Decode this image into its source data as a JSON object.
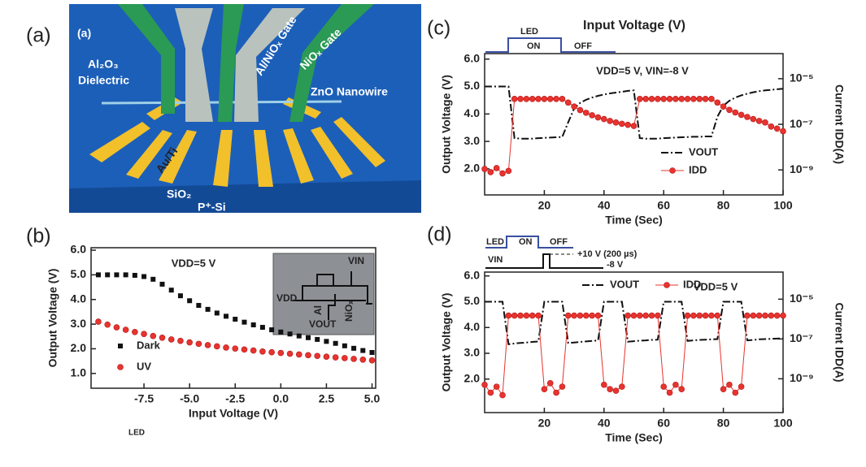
{
  "figure": {
    "panel_labels": [
      "(a)",
      "(b)",
      "(c)",
      "(d)"
    ],
    "illustration": {
      "inner_label": "(a)",
      "labels": [
        "Al₂O₃",
        "Dielectric",
        "Al/NiOₓ Gate",
        "NiOₓ Gate",
        "ZnO Nanowire",
        "Au/Ti",
        "SiO₂",
        "P⁺-Si"
      ]
    },
    "stray_text": "LED"
  },
  "chart_data": [
    {
      "type": "line",
      "xlabel": "Input Voltage (V)",
      "ylabel": "Output Voltage (V)",
      "annotation": "VDD=5 V",
      "inset_labels": [
        "VDD",
        "VIN",
        "VOUT",
        "Al",
        "NiOₓ"
      ],
      "x": [
        -10,
        -9.5,
        -9,
        -8.5,
        -8,
        -7.5,
        -7,
        -6.5,
        -6,
        -5.5,
        -5,
        -4.5,
        -4,
        -3.5,
        -3,
        -2.5,
        -2,
        -1.5,
        -1,
        -0.5,
        0,
        0.5,
        1,
        1.5,
        2,
        2.5,
        3,
        3.5,
        4,
        4.5,
        5
      ],
      "series": [
        {
          "name": "Dark",
          "color": "#111111",
          "marker": "square",
          "linestyle": "none",
          "values": [
            5.0,
            5.0,
            5.0,
            5.0,
            4.98,
            4.93,
            4.82,
            4.62,
            4.38,
            4.15,
            3.95,
            3.76,
            3.6,
            3.45,
            3.32,
            3.2,
            3.08,
            2.97,
            2.87,
            2.77,
            2.68,
            2.6,
            2.52,
            2.45,
            2.38,
            2.3,
            2.22,
            2.12,
            2.02,
            1.93,
            1.85
          ]
        },
        {
          "name": "UV",
          "color": "#e8332e",
          "marker": "circle",
          "linestyle": "none",
          "values": [
            3.1,
            2.98,
            2.87,
            2.77,
            2.68,
            2.6,
            2.52,
            2.45,
            2.38,
            2.32,
            2.26,
            2.2,
            2.15,
            2.1,
            2.05,
            2.01,
            1.97,
            1.93,
            1.89,
            1.86,
            1.83,
            1.8,
            1.77,
            1.74,
            1.71,
            1.68,
            1.65,
            1.62,
            1.59,
            1.56,
            1.53
          ]
        }
      ],
      "xlim": [
        -10.4,
        5.2
      ],
      "xticks": [
        -7.5,
        {
          "value": -5,
          "label": "-5.0"
        },
        -2.5,
        {
          "value": 0,
          "label": "0.0"
        },
        2.5,
        {
          "value": 5,
          "label": "5.0"
        }
      ],
      "ylim": [
        0.4,
        6.1
      ],
      "yticks": [
        {
          "value": 1,
          "label": "1.0"
        },
        {
          "value": 2,
          "label": "2.0"
        },
        {
          "value": 3,
          "label": "3.0"
        },
        {
          "value": 4,
          "label": "4.0"
        },
        {
          "value": 5,
          "label": "5.0"
        },
        {
          "value": 6,
          "label": "6.0"
        }
      ],
      "legend": "lower left"
    },
    {
      "type": "line",
      "title": "Input Voltage (V)",
      "xlabel": "Time (Sec)",
      "ylabel": "Output Voltage (V)",
      "y2label": "Current IDD(A)",
      "annotation": "VDD=5 V, VIN=-8 V",
      "waveform_labels": [
        "LED",
        "ON",
        "OFF"
      ],
      "x": [
        0,
        2,
        4,
        6,
        8,
        10,
        12,
        14,
        16,
        18,
        20,
        22,
        24,
        26,
        28,
        30,
        32,
        34,
        36,
        38,
        40,
        42,
        44,
        46,
        48,
        50,
        52,
        54,
        56,
        58,
        60,
        62,
        64,
        66,
        68,
        70,
        72,
        74,
        76,
        78,
        80,
        82,
        84,
        86,
        88,
        90,
        92,
        94,
        96,
        98,
        100
      ],
      "series": [
        {
          "name": "VOUT",
          "color": "#111111",
          "marker": "none",
          "linestyle": "dash-dot",
          "values": [
            5.0,
            5.0,
            5.0,
            5.0,
            5.0,
            3.12,
            3.1,
            3.1,
            3.1,
            3.12,
            3.13,
            3.14,
            3.15,
            3.16,
            3.7,
            4.2,
            4.4,
            4.52,
            4.6,
            4.66,
            4.71,
            4.75,
            4.78,
            4.81,
            4.84,
            4.86,
            3.12,
            3.1,
            3.1,
            3.1,
            3.12,
            3.13,
            3.14,
            3.15,
            3.16,
            3.17,
            3.17,
            3.18,
            3.18,
            3.9,
            4.3,
            4.48,
            4.6,
            4.68,
            4.74,
            4.79,
            4.83,
            4.86,
            4.88,
            4.9,
            4.92
          ]
        },
        {
          "name": "IDD",
          "color": "#e8332e",
          "marker": "circle",
          "linestyle": "thin",
          "axis": "y2",
          "values": [
            1.1e-09,
            8e-10,
            1.2e-09,
            7e-10,
            9e-10,
            1.3e-06,
            1.3e-06,
            1.3e-06,
            1.3e-06,
            1.3e-06,
            1.3e-06,
            1.3e-06,
            1.3e-06,
            1.3e-06,
            9e-07,
            6e-07,
            4.2e-07,
            3.2e-07,
            2.5e-07,
            2e-07,
            1.7e-07,
            1.4e-07,
            1.2e-07,
            1.05e-07,
            9.5e-08,
            8.5e-08,
            1.3e-06,
            1.3e-06,
            1.3e-06,
            1.3e-06,
            1.3e-06,
            1.3e-06,
            1.3e-06,
            1.3e-06,
            1.3e-06,
            1.3e-06,
            1.3e-06,
            1.3e-06,
            1.3e-06,
            9e-07,
            6e-07,
            4.3e-07,
            3.3e-07,
            2.6e-07,
            2.1e-07,
            1.7e-07,
            1.4e-07,
            1.2e-07,
            8e-08,
            6.5e-08,
            5e-08
          ]
        }
      ],
      "xlim": [
        0,
        100
      ],
      "xticks": [
        20,
        40,
        60,
        80,
        100
      ],
      "ylim": [
        1.05,
        6.2
      ],
      "yticks": [
        {
          "value": 2,
          "label": "2.0"
        },
        {
          "value": 3,
          "label": "3.0"
        },
        {
          "value": 4,
          "label": "4.0"
        },
        {
          "value": 5,
          "label": "5.0"
        },
        {
          "value": 6,
          "label": "6.0"
        }
      ],
      "y2lim": [
        8e-11,
        0.000126
      ],
      "y2log": true,
      "y2ticks": [
        {
          "value": 1e-09,
          "label": "10⁻⁹"
        },
        {
          "value": 1e-07,
          "label": "10⁻⁷"
        },
        {
          "value": 1e-05,
          "label": "10⁻⁵"
        }
      ],
      "legend": "lower right"
    },
    {
      "type": "line",
      "xlabel": "Time (Sec)",
      "ylabel": "Output Voltage (V)",
      "y2label": "Current IDD(A)",
      "annotation": "VDD=5 V",
      "waveform_labels": [
        "LED",
        "ON",
        "OFF",
        "VIN",
        "+10 V (200 µs)",
        "-8 V"
      ],
      "x": [
        0,
        2,
        4,
        6,
        8,
        10,
        12,
        14,
        16,
        18,
        20,
        22,
        24,
        26,
        28,
        30,
        32,
        34,
        36,
        38,
        40,
        42,
        44,
        46,
        48,
        50,
        52,
        54,
        56,
        58,
        60,
        62,
        64,
        66,
        68,
        70,
        72,
        74,
        76,
        78,
        80,
        82,
        84,
        86,
        88,
        90,
        92,
        94,
        96,
        98,
        100
      ],
      "series": [
        {
          "name": "VOUT",
          "color": "#111111",
          "marker": "none",
          "linestyle": "dash-dot",
          "values": [
            5.0,
            5.0,
            5.0,
            5.0,
            3.35,
            3.38,
            3.4,
            3.42,
            3.44,
            3.46,
            5.0,
            5.0,
            5.0,
            5.0,
            3.4,
            3.42,
            3.44,
            3.46,
            3.48,
            3.5,
            5.0,
            5.0,
            5.0,
            5.0,
            3.45,
            3.47,
            3.49,
            3.5,
            3.52,
            3.53,
            5.0,
            5.0,
            5.0,
            5.0,
            3.48,
            3.5,
            3.52,
            3.53,
            3.54,
            3.55,
            5.0,
            5.0,
            5.0,
            5.0,
            3.5,
            3.52,
            3.54,
            3.55,
            3.56,
            3.57,
            3.58
          ]
        },
        {
          "name": "IDD",
          "color": "#e8332e",
          "marker": "circle",
          "linestyle": "thin",
          "axis": "y2",
          "values": [
            5e-10,
            2e-10,
            4e-10,
            1.5e-10,
            1.5e-06,
            1.5e-06,
            1.5e-06,
            1.5e-06,
            1.5e-06,
            1.5e-06,
            3e-10,
            6e-10,
            2e-10,
            4e-10,
            1.5e-06,
            1.5e-06,
            1.5e-06,
            1.5e-06,
            1.5e-06,
            1.5e-06,
            5e-10,
            3e-10,
            2.5e-10,
            4e-10,
            1.5e-06,
            1.5e-06,
            1.5e-06,
            1.5e-06,
            1.5e-06,
            1.5e-06,
            4e-10,
            2e-10,
            5e-10,
            3e-10,
            1.5e-06,
            1.5e-06,
            1.5e-06,
            1.5e-06,
            1.5e-06,
            1.5e-06,
            3e-10,
            5e-10,
            2e-10,
            4e-10,
            1.5e-06,
            1.5e-06,
            1.5e-06,
            1.5e-06,
            1.5e-06,
            1.5e-06,
            1.5e-06
          ]
        }
      ],
      "xlim": [
        0,
        100
      ],
      "xticks": [
        20,
        40,
        60,
        80,
        100
      ],
      "ylim": [
        0.7,
        6.15
      ],
      "yticks": [
        {
          "value": 2,
          "label": "2.0"
        },
        {
          "value": 3,
          "label": "3.0"
        },
        {
          "value": 4,
          "label": "4.0"
        },
        {
          "value": 5,
          "label": "5.0"
        },
        {
          "value": 6,
          "label": "6.0"
        }
      ],
      "y2lim": [
        2e-11,
        0.00023
      ],
      "y2log": true,
      "y2ticks": [
        {
          "value": 1e-09,
          "label": "10⁻⁹"
        },
        {
          "value": 1e-07,
          "label": "10⁻⁷"
        },
        {
          "value": 1e-05,
          "label": "10⁻⁵"
        }
      ],
      "legend": "upper center"
    }
  ]
}
